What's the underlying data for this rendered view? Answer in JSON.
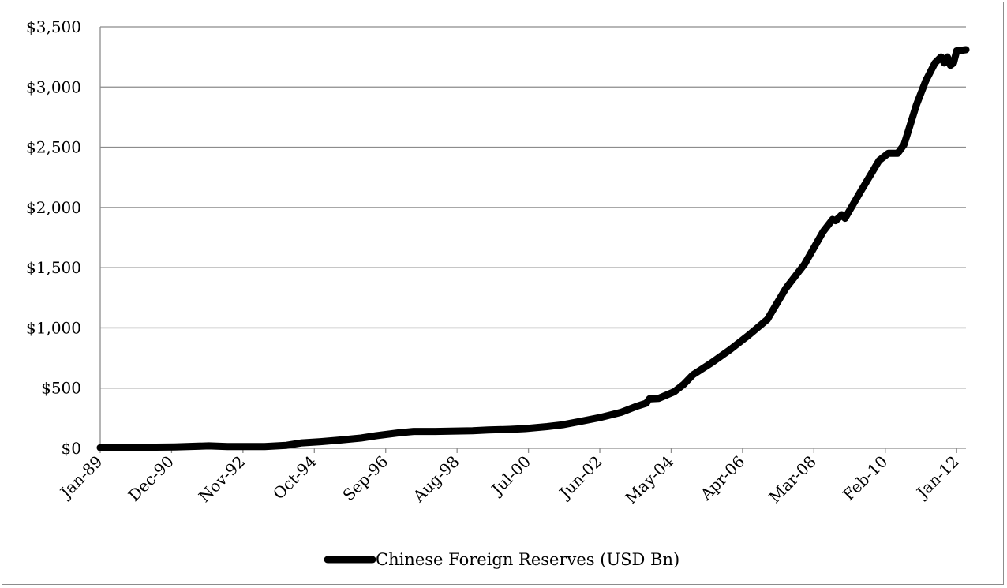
{
  "chart_data": {
    "type": "line",
    "title": "",
    "xlabel": "",
    "ylabel": "",
    "ylim": [
      0,
      3500
    ],
    "y_ticks": [
      0,
      500,
      1000,
      1500,
      2000,
      2500,
      3000,
      3500
    ],
    "y_tick_labels": [
      "$0",
      "$500",
      "$1,000",
      "$1,500",
      "$2,000",
      "$2,500",
      "$3,000",
      "$3,500"
    ],
    "x_tick_labels": [
      "Jan-89",
      "Dec-90",
      "Nov-92",
      "Oct-94",
      "Sep-96",
      "Aug-98",
      "Jul-00",
      "Jun-02",
      "May-04",
      "Apr-06",
      "Mar-08",
      "Feb-10",
      "Jan-12"
    ],
    "x_range": [
      "1989-01",
      "2012-04"
    ],
    "grid": "horizontal",
    "legend_position": "bottom",
    "series": [
      {
        "name": "Chinese Foreign Reserves (USD Bn)",
        "color": "#000000",
        "x": [
          "1989-01",
          "1990-01",
          "1991-01",
          "1991-12",
          "1992-06",
          "1993-06",
          "1994-01",
          "1994-06",
          "1994-12",
          "1995-06",
          "1996-01",
          "1996-06",
          "1997-01",
          "1997-06",
          "1998-01",
          "1998-06",
          "1999-01",
          "1999-06",
          "2000-01",
          "2000-06",
          "2001-01",
          "2001-06",
          "2002-01",
          "2002-06",
          "2003-01",
          "2003-06",
          "2003-09",
          "2003-10",
          "2004-01",
          "2004-06",
          "2004-09",
          "2004-12",
          "2005-06",
          "2005-12",
          "2006-06",
          "2006-12",
          "2007-06",
          "2007-12",
          "2008-06",
          "2008-09",
          "2008-10",
          "2008-12",
          "2009-01",
          "2009-06",
          "2009-12",
          "2010-03",
          "2010-06",
          "2010-08",
          "2010-09",
          "2010-12",
          "2011-03",
          "2011-06",
          "2011-08",
          "2011-09",
          "2011-10",
          "2011-11",
          "2011-12",
          "2012-01",
          "2012-04"
        ],
        "values": [
          5,
          8,
          12,
          20,
          15,
          15,
          25,
          45,
          55,
          68,
          85,
          105,
          128,
          140,
          140,
          142,
          146,
          152,
          157,
          164,
          180,
          195,
          230,
          255,
          300,
          350,
          375,
          410,
          415,
          470,
          530,
          610,
          710,
          820,
          940,
          1070,
          1330,
          1530,
          1800,
          1900,
          1890,
          1940,
          1910,
          2130,
          2390,
          2450,
          2450,
          2520,
          2600,
          2850,
          3050,
          3200,
          3250,
          3200,
          3250,
          3180,
          3200,
          3300,
          3310
        ]
      }
    ]
  }
}
